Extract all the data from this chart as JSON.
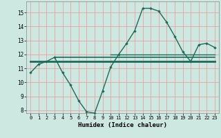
{
  "title": "",
  "xlabel": "Humidex (Indice chaleur)",
  "bg_color": "#cce8e0",
  "grid_color": "#e8a0a0",
  "line_color": "#1a6b5a",
  "xlim": [
    -0.5,
    23.5
  ],
  "ylim": [
    7.8,
    15.8
  ],
  "yticks": [
    8,
    9,
    10,
    11,
    12,
    13,
    14,
    15
  ],
  "xticks": [
    0,
    1,
    2,
    3,
    4,
    5,
    6,
    7,
    8,
    9,
    10,
    11,
    12,
    13,
    14,
    15,
    16,
    17,
    18,
    19,
    20,
    21,
    22,
    23
  ],
  "main_series": {
    "x": [
      0,
      1,
      2,
      3,
      4,
      5,
      6,
      7,
      8,
      9,
      10,
      11,
      12,
      13,
      14,
      15,
      16,
      17,
      18,
      19,
      20,
      21,
      22,
      23
    ],
    "y": [
      10.7,
      11.3,
      11.5,
      11.8,
      10.7,
      9.8,
      8.7,
      7.9,
      7.8,
      9.4,
      11.1,
      12.0,
      12.8,
      13.7,
      15.3,
      15.3,
      15.1,
      14.3,
      13.3,
      12.2,
      11.5,
      12.7,
      12.8,
      12.5
    ]
  },
  "flat_lines": [
    {
      "x": [
        0,
        23
      ],
      "y": [
        11.5,
        11.5
      ],
      "lw": 2.0
    },
    {
      "x": [
        3,
        23
      ],
      "y": [
        11.8,
        11.8
      ],
      "lw": 1.2
    },
    {
      "x": [
        10,
        23
      ],
      "y": [
        12.0,
        12.0
      ],
      "lw": 1.0
    },
    {
      "x": [
        19,
        23
      ],
      "y": [
        11.5,
        11.5
      ],
      "lw": 0.8
    }
  ]
}
